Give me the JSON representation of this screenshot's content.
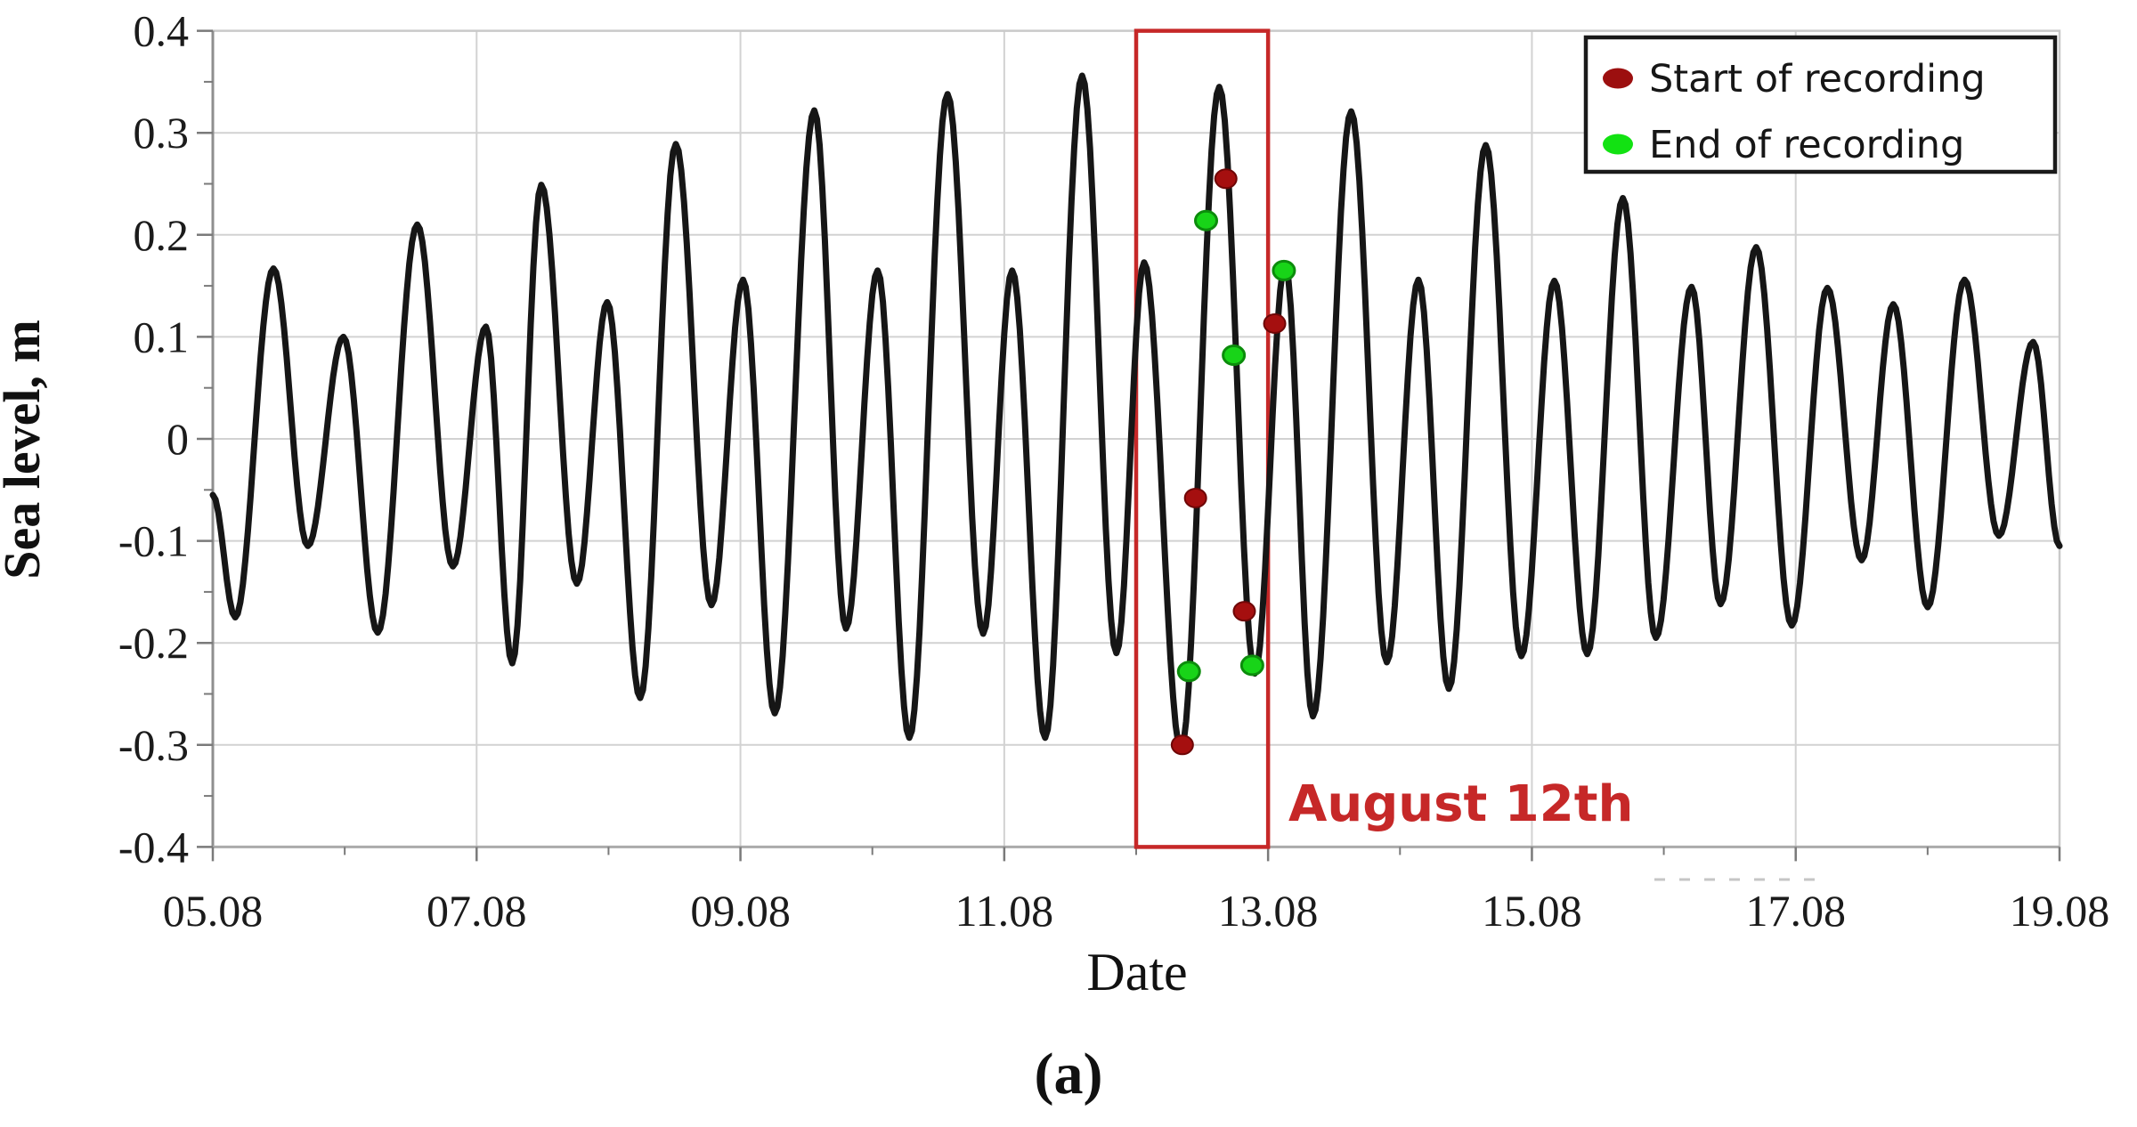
{
  "figure": {
    "caption": "(a)",
    "x_axis_title": "Date",
    "y_axis_title": "Sea level, m",
    "annotation": {
      "text": "August 12th",
      "color": "#c62828"
    },
    "legend": {
      "position": "top-right",
      "items": [
        {
          "label": "Start of recording",
          "marker": "circle",
          "color": "#9c0f0f"
        },
        {
          "label": "End of recording",
          "marker": "circle",
          "color": "#12e212"
        }
      ]
    }
  },
  "chart_data": {
    "type": "line",
    "xlabel": "Date",
    "ylabel": "Sea level, m",
    "x_tick_labels": [
      "05.08",
      "07.08",
      "09.08",
      "11.08",
      "13.08",
      "15.08",
      "17.08",
      "19.08"
    ],
    "x_tick_days": [
      5,
      7,
      9,
      11,
      13,
      15,
      17,
      19
    ],
    "x_minor_tick_days": [
      6,
      8,
      10,
      12,
      14,
      16,
      18
    ],
    "x_domain_days": [
      5,
      19
    ],
    "x_format_note": "DD.08 = day of August",
    "y_tick_labels": [
      "0.4",
      "0.3",
      "0.2",
      "0.1",
      "0",
      "-0.1",
      "-0.2",
      "-0.3",
      "-0.4"
    ],
    "y_tick_values": [
      0.4,
      0.3,
      0.2,
      0.1,
      0,
      -0.1,
      -0.2,
      -0.3,
      -0.4
    ],
    "y_minor_step": 0.05,
    "ylim": [
      -0.4,
      0.4
    ],
    "grid": "major gridlines, light gray",
    "series": [
      {
        "name": "Sea level (tide gauge)",
        "color": "#161616",
        "interpolation": "half-cosine through successive extrema",
        "extrema_day_value": [
          [
            5.0,
            -0.055
          ],
          [
            5.17,
            -0.175
          ],
          [
            5.46,
            0.167
          ],
          [
            5.72,
            -0.105
          ],
          [
            5.99,
            0.1
          ],
          [
            6.25,
            -0.19
          ],
          [
            6.55,
            0.21
          ],
          [
            6.82,
            -0.125
          ],
          [
            7.07,
            0.11
          ],
          [
            7.27,
            -0.22
          ],
          [
            7.49,
            0.249
          ],
          [
            7.76,
            -0.142
          ],
          [
            7.99,
            0.134
          ],
          [
            8.24,
            -0.254
          ],
          [
            8.51,
            0.289
          ],
          [
            8.78,
            -0.163
          ],
          [
            9.02,
            0.156
          ],
          [
            9.26,
            -0.269
          ],
          [
            9.56,
            0.322
          ],
          [
            9.8,
            -0.186
          ],
          [
            10.04,
            0.165
          ],
          [
            10.28,
            -0.293
          ],
          [
            10.57,
            0.338
          ],
          [
            10.84,
            -0.191
          ],
          [
            11.06,
            0.165
          ],
          [
            11.31,
            -0.293
          ],
          [
            11.59,
            0.356
          ],
          [
            11.85,
            -0.21
          ],
          [
            12.06,
            0.173
          ],
          [
            12.34,
            -0.305
          ],
          [
            12.63,
            0.345
          ],
          [
            12.9,
            -0.23
          ],
          [
            13.13,
            0.172
          ],
          [
            13.34,
            -0.272
          ],
          [
            13.63,
            0.321
          ],
          [
            13.9,
            -0.219
          ],
          [
            14.14,
            0.156
          ],
          [
            14.37,
            -0.245
          ],
          [
            14.65,
            0.288
          ],
          [
            14.92,
            -0.213
          ],
          [
            15.17,
            0.155
          ],
          [
            15.42,
            -0.211
          ],
          [
            15.69,
            0.236
          ],
          [
            15.94,
            -0.195
          ],
          [
            16.21,
            0.149
          ],
          [
            16.43,
            -0.162
          ],
          [
            16.7,
            0.188
          ],
          [
            16.97,
            -0.183
          ],
          [
            17.24,
            0.148
          ],
          [
            17.5,
            -0.119
          ],
          [
            17.74,
            0.132
          ],
          [
            18.0,
            -0.165
          ],
          [
            18.28,
            0.156
          ],
          [
            18.54,
            -0.095
          ],
          [
            18.8,
            0.095
          ],
          [
            19.0,
            -0.105
          ]
        ]
      }
    ],
    "markers": {
      "start_of_recording": {
        "color": "#a50f0f",
        "points_day_value": [
          [
            12.35,
            -0.3
          ],
          [
            12.45,
            -0.058
          ],
          [
            12.68,
            0.255
          ],
          [
            12.82,
            -0.169
          ],
          [
            13.05,
            0.113
          ]
        ]
      },
      "end_of_recording": {
        "color": "#18d418",
        "points_day_value": [
          [
            12.4,
            -0.228
          ],
          [
            12.53,
            0.214
          ],
          [
            12.74,
            0.082
          ],
          [
            12.88,
            -0.222
          ],
          [
            13.12,
            0.165
          ]
        ]
      }
    },
    "highlight_box": {
      "day_from": 12.0,
      "day_to": 13.0,
      "value_from": -0.4,
      "value_to": 0.4,
      "label": "August 12th",
      "color": "#c62828"
    },
    "colors": {
      "curve": "#161616",
      "grid": "#d2d2d2",
      "frame": "#c9c9c9",
      "left_axis": "#8f8f8f",
      "bottom_axis": "#ababab",
      "tick": "#7a7a7a",
      "highlight_red": "#c62828",
      "start_marker": "#a50f0f",
      "end_marker": "#18d418"
    }
  }
}
